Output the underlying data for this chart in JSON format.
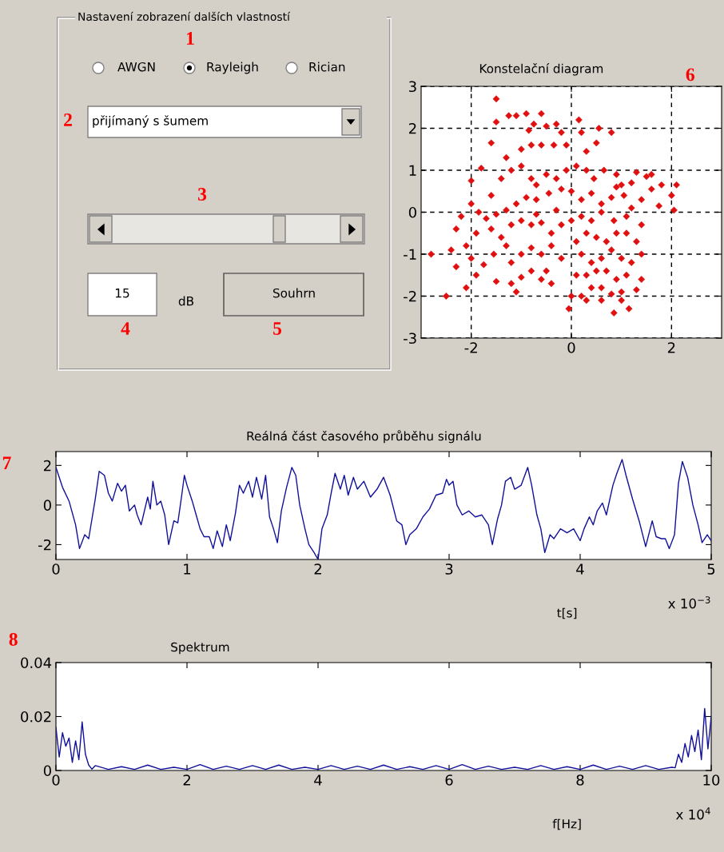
{
  "chart_data": [
    {
      "type": "other",
      "title": "Nastavení zobrazení dalších vlastností",
      "annotations": [
        "1",
        "AWGN",
        "Rayleigh",
        "Rician",
        "2",
        "přijímaný s šumem",
        "3",
        "15",
        "dB",
        "Souhrn",
        "4",
        "5"
      ]
    },
    {
      "type": "scatter",
      "title": "Konstelační diagram",
      "color": "#e01010",
      "marker": "diamond",
      "grid": true,
      "xlim": [
        -3,
        3
      ],
      "ylim": [
        -3,
        3
      ],
      "xticks": [
        -2,
        0,
        2
      ],
      "yticks": [
        -3,
        -2,
        -1,
        0,
        1,
        2,
        3
      ],
      "annotations": [
        "6"
      ],
      "x": [
        -1.5,
        -1.5,
        -1.25,
        -1.1,
        -0.9,
        -0.6,
        -0.75,
        -0.85,
        -0.5,
        -0.3,
        -0.2,
        0.15,
        0.2,
        0.55,
        0.8,
        0.5,
        0.3,
        -0.1,
        -0.35,
        -0.6,
        -0.8,
        -1.0,
        -1.3,
        -1.6,
        -1.8,
        -2.0,
        -1.4,
        -1.2,
        -1.0,
        -0.8,
        -0.7,
        -0.5,
        -0.3,
        -0.1,
        0.1,
        0.3,
        0.45,
        0.65,
        0.9,
        1.0,
        1.2,
        1.3,
        1.5,
        1.6,
        1.8,
        2.1,
        2.0,
        2.05,
        1.75,
        1.4,
        1.2,
        1.05,
        0.8,
        0.6,
        0.4,
        0.2,
        0.0,
        -0.2,
        -0.45,
        -0.7,
        -0.9,
        -1.1,
        -1.3,
        -1.5,
        -1.7,
        -2.0,
        -2.2,
        -2.3,
        -1.9,
        -1.6,
        -1.4,
        -1.2,
        -1.0,
        -0.8,
        -0.6,
        -0.4,
        -0.2,
        0.0,
        0.2,
        0.4,
        0.6,
        0.85,
        1.1,
        1.4,
        -2.8,
        -2.4,
        -2.1,
        -2.3,
        -2.0,
        -1.75,
        -1.55,
        -1.3,
        -1.2,
        -1.0,
        -0.8,
        -0.6,
        -0.4,
        -0.2,
        -0.5,
        -0.8,
        -1.0,
        -1.2,
        -1.5,
        -1.9,
        -2.1,
        -2.5,
        -1.1,
        -0.6,
        -0.4,
        0.1,
        0.3,
        0.5,
        0.7,
        0.9,
        1.1,
        1.3,
        1.4,
        1.2,
        1.0,
        0.8,
        0.6,
        0.4,
        0.2,
        0.1,
        0.3,
        0.5,
        0.7,
        0.9,
        1.1,
        1.4,
        1.3,
        1.0,
        0.8,
        0.6,
        0.4,
        0.2,
        0.0,
        -0.05,
        0.3,
        0.6,
        0.85,
        1.15,
        1.0,
        -0.7,
        -0.3,
        0.9,
        1.6,
        -1.6,
        -1.85
      ],
      "values": [
        2.7,
        2.15,
        2.3,
        2.3,
        2.35,
        2.35,
        2.1,
        1.95,
        2.05,
        2.1,
        1.9,
        2.2,
        1.9,
        2.0,
        1.9,
        1.65,
        1.45,
        1.6,
        1.6,
        1.6,
        1.6,
        1.5,
        1.3,
        1.65,
        1.05,
        0.75,
        0.8,
        1.0,
        1.1,
        0.8,
        0.65,
        0.9,
        0.8,
        1.0,
        1.1,
        1.0,
        0.8,
        1.0,
        0.9,
        0.65,
        0.7,
        0.95,
        0.85,
        0.55,
        0.65,
        0.65,
        0.4,
        0.05,
        0.15,
        0.3,
        0.1,
        0.4,
        0.35,
        0.2,
        0.45,
        0.3,
        0.5,
        0.55,
        0.45,
        0.3,
        0.35,
        0.2,
        0.05,
        -0.05,
        -0.15,
        0.2,
        -0.1,
        -0.4,
        -0.5,
        -0.4,
        -0.6,
        -0.3,
        -0.2,
        -0.3,
        -0.25,
        -0.5,
        -0.3,
        -0.2,
        -0.1,
        -0.2,
        0.0,
        -0.2,
        -0.1,
        -0.3,
        -1.0,
        -0.9,
        -0.8,
        -1.3,
        -1.1,
        -1.25,
        -1.0,
        -0.8,
        -1.2,
        -1.0,
        -0.85,
        -1.0,
        -0.8,
        -1.1,
        -1.4,
        -1.4,
        -1.55,
        -1.7,
        -1.65,
        -1.5,
        -1.8,
        -2.0,
        -1.9,
        -1.6,
        -1.7,
        -0.7,
        -0.5,
        -0.6,
        -0.7,
        -0.5,
        -0.5,
        -0.7,
        -1.0,
        -1.2,
        -1.1,
        -0.9,
        -1.1,
        -1.2,
        -1.0,
        -1.5,
        -1.5,
        -1.4,
        -1.4,
        -1.6,
        -1.5,
        -1.6,
        -1.85,
        -1.9,
        -1.95,
        -1.8,
        -1.8,
        -2.0,
        -2.0,
        -2.3,
        -2.1,
        -2.1,
        -2.4,
        -2.3,
        -2.1,
        -0.05,
        0.05,
        0.6,
        0.9,
        0.4,
        0.0
      ]
    },
    {
      "type": "line",
      "title": "Reálná část časového průběhu signálu",
      "xlabel": "t[s]",
      "color": "#10109a",
      "xlim": [
        0,
        5
      ],
      "ylim": [
        -2.75,
        2.7
      ],
      "xticks": [
        0,
        1,
        2,
        3,
        4,
        5
      ],
      "yticks": [
        -2,
        0,
        2
      ],
      "annotations": [
        "7",
        "x 10$^{−3}$"
      ],
      "x": [
        0,
        0.05,
        0.1,
        0.15,
        0.18,
        0.22,
        0.25,
        0.3,
        0.33,
        0.37,
        0.4,
        0.43,
        0.47,
        0.5,
        0.53,
        0.56,
        0.6,
        0.62,
        0.65,
        0.7,
        0.72,
        0.74,
        0.77,
        0.8,
        0.83,
        0.86,
        0.9,
        0.93,
        0.96,
        0.98,
        1.0,
        1.04,
        1.07,
        1.1,
        1.13,
        1.17,
        1.2,
        1.23,
        1.27,
        1.3,
        1.33,
        1.37,
        1.4,
        1.43,
        1.47,
        1.5,
        1.53,
        1.57,
        1.6,
        1.63,
        1.66,
        1.69,
        1.72,
        1.76,
        1.8,
        1.83,
        1.86,
        1.9,
        1.93,
        1.97,
        2.0,
        2.03,
        2.07,
        2.1,
        2.13,
        2.17,
        2.2,
        2.23,
        2.27,
        2.3,
        2.35,
        2.4,
        2.45,
        2.5,
        2.55,
        2.6,
        2.64,
        2.67,
        2.7,
        2.75,
        2.8,
        2.85,
        2.9,
        2.95,
        2.98,
        3.0,
        3.03,
        3.06,
        3.1,
        3.15,
        3.2,
        3.25,
        3.3,
        3.33,
        3.37,
        3.4,
        3.43,
        3.47,
        3.5,
        3.55,
        3.6,
        3.63,
        3.67,
        3.7,
        3.73,
        3.77,
        3.8,
        3.85,
        3.9,
        3.95,
        4.0,
        4.03,
        4.07,
        4.1,
        4.13,
        4.17,
        4.2,
        4.25,
        4.28,
        4.32,
        4.35,
        4.4,
        4.45,
        4.5,
        4.55,
        4.58,
        4.62,
        4.65,
        4.68,
        4.72,
        4.75,
        4.78,
        4.82,
        4.86,
        4.9,
        4.93,
        4.97,
        5.0
      ],
      "values": [
        1.9,
        0.9,
        0.2,
        -1.0,
        -2.2,
        -1.5,
        -1.7,
        0.3,
        1.7,
        1.5,
        0.6,
        0.2,
        1.1,
        0.7,
        1.0,
        -0.3,
        0.0,
        -0.5,
        -1.0,
        0.4,
        -0.2,
        1.2,
        0.0,
        0.2,
        -0.5,
        -2.0,
        -0.8,
        -0.9,
        0.5,
        1.5,
        1.0,
        0.2,
        -0.5,
        -1.2,
        -1.6,
        -1.6,
        -2.2,
        -1.3,
        -2.1,
        -1.0,
        -1.8,
        -0.4,
        1.0,
        0.6,
        1.2,
        0.4,
        1.4,
        0.3,
        1.5,
        -0.6,
        -1.2,
        -1.9,
        -0.3,
        0.9,
        1.9,
        1.5,
        0.0,
        -1.2,
        -2.0,
        -2.4,
        -2.75,
        -1.2,
        -0.5,
        0.6,
        1.6,
        0.8,
        1.5,
        0.5,
        1.4,
        0.8,
        1.2,
        0.4,
        0.8,
        1.4,
        0.5,
        -0.8,
        -1.0,
        -2.0,
        -1.5,
        -1.2,
        -0.6,
        -0.2,
        0.5,
        0.6,
        1.3,
        1.0,
        1.2,
        0.0,
        -0.5,
        -0.3,
        -0.6,
        -0.5,
        -1.0,
        -2.0,
        -0.7,
        0.0,
        1.2,
        1.4,
        0.8,
        1.0,
        1.9,
        1.0,
        -0.5,
        -1.2,
        -2.4,
        -1.5,
        -1.7,
        -1.2,
        -1.4,
        -1.2,
        -1.8,
        -1.2,
        -0.6,
        -1.0,
        -0.3,
        0.1,
        -0.5,
        1.0,
        1.6,
        2.3,
        1.5,
        0.3,
        -0.8,
        -2.1,
        -0.8,
        -1.6,
        -1.7,
        -1.7,
        -2.2,
        -1.5,
        1.1,
        2.2,
        1.4,
        0.0,
        -1.0,
        -1.9,
        -1.5,
        -1.8
      ]
    },
    {
      "type": "line",
      "title": "Spektrum",
      "xlabel": "f[Hz]",
      "color": "#10109a",
      "xlim": [
        0,
        10
      ],
      "ylim": [
        0,
        0.04
      ],
      "xticks": [
        0,
        2,
        4,
        6,
        8,
        10
      ],
      "yticks": [
        0,
        0.02,
        0.04
      ],
      "annotations": [
        "8",
        "x 10$^{4}$"
      ],
      "x": [
        0,
        0.05,
        0.1,
        0.15,
        0.2,
        0.25,
        0.3,
        0.35,
        0.4,
        0.45,
        0.5,
        0.55,
        0.6,
        0.8,
        1.0,
        1.2,
        1.4,
        1.6,
        1.8,
        2.0,
        2.2,
        2.4,
        2.6,
        2.8,
        3.0,
        3.2,
        3.4,
        3.6,
        3.8,
        4.0,
        4.2,
        4.4,
        4.6,
        4.8,
        5.0,
        5.2,
        5.4,
        5.6,
        5.8,
        6.0,
        6.2,
        6.4,
        6.6,
        6.8,
        7.0,
        7.2,
        7.4,
        7.6,
        7.8,
        8.0,
        8.2,
        8.4,
        8.6,
        8.8,
        9.0,
        9.2,
        9.4,
        9.45,
        9.5,
        9.55,
        9.6,
        9.65,
        9.7,
        9.75,
        9.8,
        9.85,
        9.9,
        9.95,
        10.0
      ],
      "values": [
        0.016,
        0.005,
        0.014,
        0.009,
        0.012,
        0.003,
        0.011,
        0.004,
        0.018,
        0.006,
        0.002,
        0.0005,
        0.0018,
        0.0004,
        0.0014,
        0.0004,
        0.002,
        0.0004,
        0.0012,
        0.0004,
        0.0022,
        0.0004,
        0.0016,
        0.0004,
        0.0018,
        0.0004,
        0.002,
        0.0004,
        0.0012,
        0.0004,
        0.0018,
        0.0004,
        0.0016,
        0.0004,
        0.002,
        0.0004,
        0.0014,
        0.0004,
        0.0018,
        0.0004,
        0.0022,
        0.0004,
        0.0016,
        0.0004,
        0.0012,
        0.0004,
        0.0018,
        0.0004,
        0.0014,
        0.0004,
        0.002,
        0.0004,
        0.0016,
        0.0004,
        0.0018,
        0.0004,
        0.0012,
        0.001,
        0.006,
        0.003,
        0.01,
        0.005,
        0.013,
        0.007,
        0.015,
        0.004,
        0.023,
        0.008,
        0.02
      ]
    }
  ]
}
